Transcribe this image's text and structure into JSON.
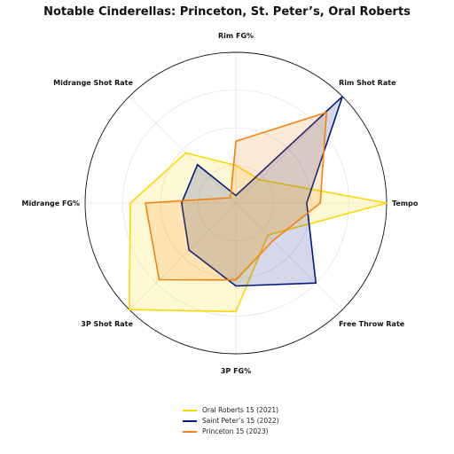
{
  "chart_data": {
    "type": "radar",
    "title": "Notable Cinderellas: Princeton, St. Peter’s, Oral Roberts",
    "axes": [
      "Rim FG%",
      "Rim Shot Rate",
      "Tempo",
      "Free Throw Rate",
      "3P FG%",
      "3P Shot Rate",
      "Midrange FG%",
      "Midrange Shot Rate"
    ],
    "rlim": [
      0,
      1
    ],
    "grid": true,
    "legend_position": "bottom-center",
    "series": [
      {
        "name": "Oral Roberts 15 (2021)",
        "color": "#FFD700",
        "values": [
          0.25,
          0.22,
          1.0,
          0.3,
          0.72,
          1.0,
          0.7,
          0.47
        ]
      },
      {
        "name": "Saint Peter’s 15 (2022)",
        "color": "#001A80",
        "values": [
          0.05,
          1.0,
          0.47,
          0.75,
          0.55,
          0.44,
          0.36,
          0.36
        ]
      },
      {
        "name": "Princeton 15 (2023)",
        "color": "#F5820A",
        "values": [
          0.41,
          0.85,
          0.56,
          0.35,
          0.51,
          0.72,
          0.6,
          0.05
        ]
      }
    ]
  }
}
